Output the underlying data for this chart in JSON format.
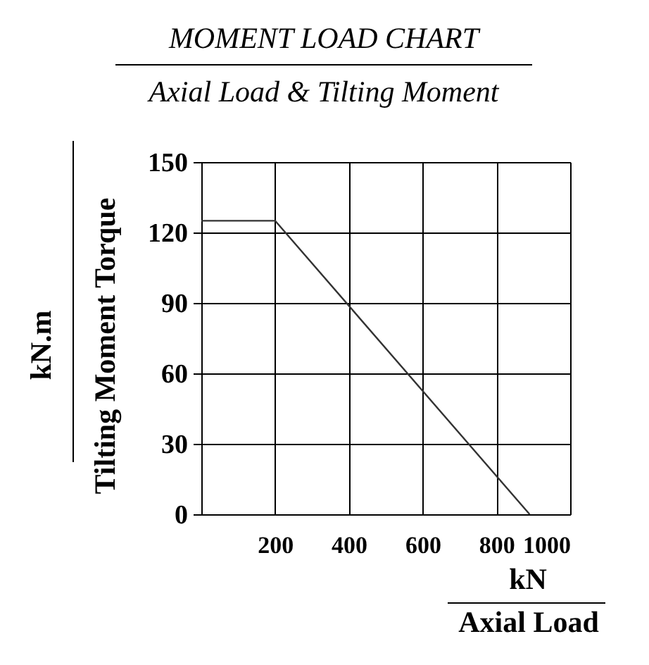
{
  "chart_data": {
    "type": "line",
    "title": "MOMENT LOAD CHART",
    "subtitle": "Axial Load & Tilting Moment",
    "xlabel": "Axial Load",
    "ylabel": "Tilting Moment Torque",
    "annotations": [
      "kN",
      "kN.m"
    ],
    "x": [
      0,
      200,
      890
    ],
    "values": [
      125,
      125,
      0
    ],
    "color": "#333333",
    "xlim": [
      0,
      1000
    ],
    "ylim": [
      0,
      150
    ],
    "xticks": [
      {
        "value": 0,
        "label": null
      },
      200,
      400,
      600,
      800,
      1000
    ],
    "yticks": [
      0,
      30,
      60,
      90,
      120,
      150
    ],
    "grid": true,
    "marker": "none",
    "line_style": "solid"
  }
}
